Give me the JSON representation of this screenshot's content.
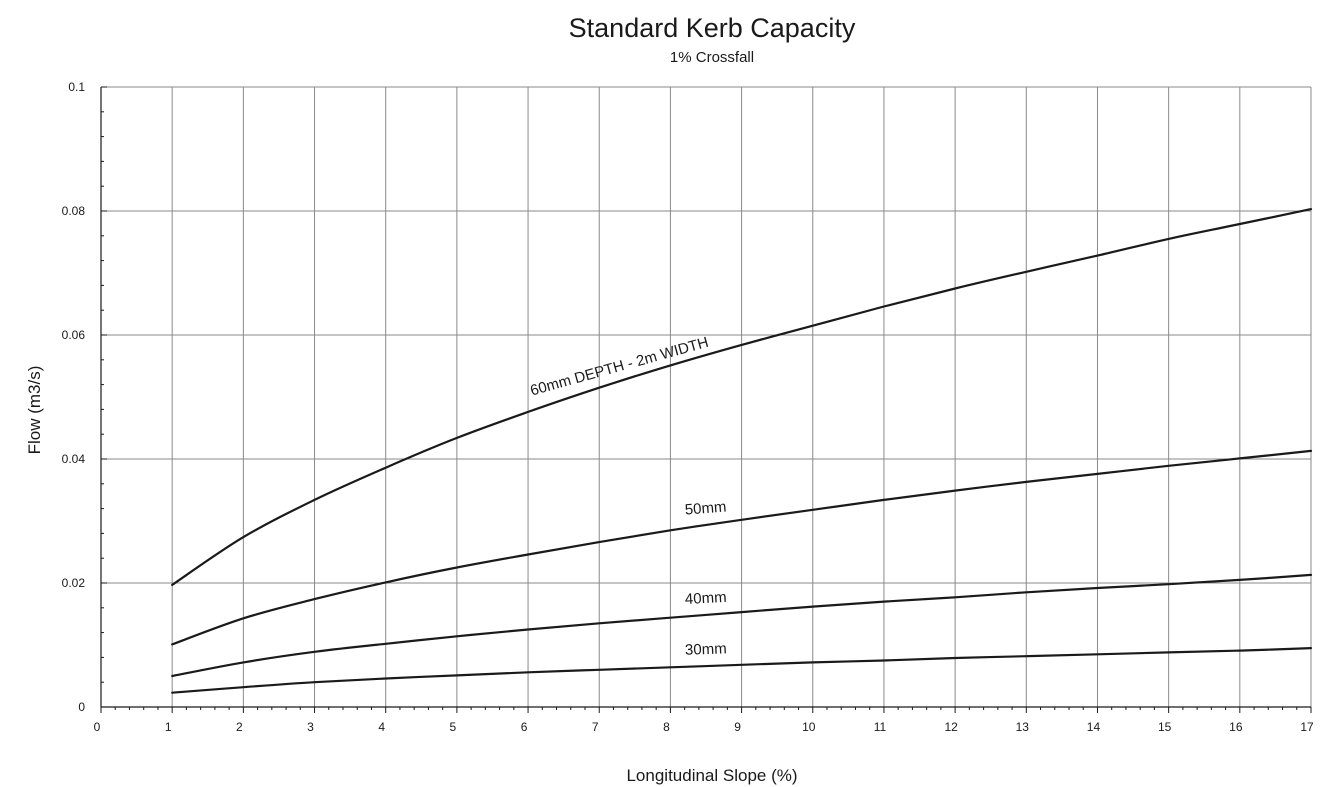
{
  "chart_data": {
    "type": "line",
    "title": "Standard Kerb Capacity",
    "subtitle": "1% Crossfall",
    "xlabel": "Longitudinal Slope (%)",
    "ylabel": "Flow (m3/s)",
    "xlim": [
      0,
      17
    ],
    "ylim": [
      0,
      0.1
    ],
    "x_ticks": [
      0,
      1,
      2,
      3,
      4,
      5,
      6,
      7,
      8,
      9,
      10,
      11,
      12,
      13,
      14,
      15,
      16,
      17
    ],
    "y_ticks": [
      0,
      0.02,
      0.04,
      0.06,
      0.08,
      0.1
    ],
    "y_tick_labels": [
      "0",
      "0.02",
      "0.04",
      "0.06",
      "0.08",
      "0.1"
    ],
    "grid": true,
    "x": [
      1,
      2,
      3,
      4,
      5,
      6,
      7,
      8,
      9,
      10,
      11,
      12,
      13,
      14,
      15,
      16,
      17
    ],
    "series": [
      {
        "name": "60mm DEPTH - 2m WIDTH",
        "values": [
          0.0197,
          0.0274,
          0.0334,
          0.0386,
          0.0434,
          0.0476,
          0.0515,
          0.0551,
          0.0584,
          0.0615,
          0.0646,
          0.0675,
          0.0702,
          0.0728,
          0.0755,
          0.0779,
          0.0803
        ]
      },
      {
        "name": "50mm",
        "values": [
          0.0101,
          0.0143,
          0.0174,
          0.0201,
          0.0225,
          0.0246,
          0.0266,
          0.0285,
          0.0302,
          0.0318,
          0.0334,
          0.0349,
          0.0363,
          0.0376,
          0.0389,
          0.0401,
          0.0413
        ]
      },
      {
        "name": "40mm",
        "values": [
          0.005,
          0.0072,
          0.0089,
          0.0102,
          0.0114,
          0.0125,
          0.0135,
          0.0144,
          0.0153,
          0.0162,
          0.017,
          0.0177,
          0.0185,
          0.0192,
          0.0198,
          0.0205,
          0.0213
        ]
      },
      {
        "name": "30mm",
        "values": [
          0.0023,
          0.0032,
          0.004,
          0.0046,
          0.0051,
          0.0056,
          0.006,
          0.0064,
          0.0068,
          0.0072,
          0.0075,
          0.0079,
          0.0082,
          0.0085,
          0.0088,
          0.0091,
          0.0095
        ]
      }
    ]
  }
}
